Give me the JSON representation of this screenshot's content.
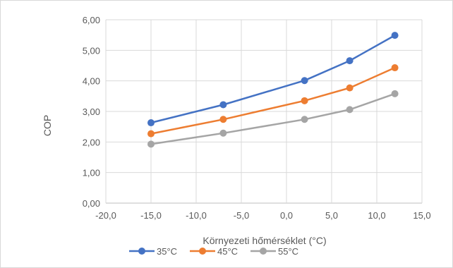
{
  "chart_data": {
    "type": "line",
    "title": "",
    "xlabel": "Környezeti hőmérséklet (°C)",
    "ylabel": "COP",
    "xlim": [
      -20,
      15
    ],
    "ylim": [
      0,
      6
    ],
    "xticks": [
      -20,
      -15,
      -10,
      -5,
      0,
      5,
      10,
      15
    ],
    "yticks": [
      0,
      1,
      2,
      3,
      4,
      5,
      6
    ],
    "xtick_labels": [
      "-20,0",
      "-15,0",
      "-10,0",
      "-5,0",
      "0,0",
      "5,0",
      "10,0",
      "15,0"
    ],
    "ytick_labels": [
      "0,00",
      "1,00",
      "2,00",
      "3,00",
      "4,00",
      "5,00",
      "6,00"
    ],
    "grid": "horizontal",
    "legend_position": "bottom",
    "x": [
      -15,
      -7,
      2,
      7,
      12
    ],
    "series": [
      {
        "name": "35°C",
        "color": "#4472c4",
        "values": [
          2.63,
          3.22,
          4.01,
          4.66,
          5.49
        ]
      },
      {
        "name": "45°C",
        "color": "#ed7d31",
        "values": [
          2.27,
          2.74,
          3.35,
          3.77,
          4.43
        ]
      },
      {
        "name": "55°C",
        "color": "#a5a5a5",
        "values": [
          1.93,
          2.29,
          2.74,
          3.06,
          3.58
        ]
      }
    ]
  }
}
